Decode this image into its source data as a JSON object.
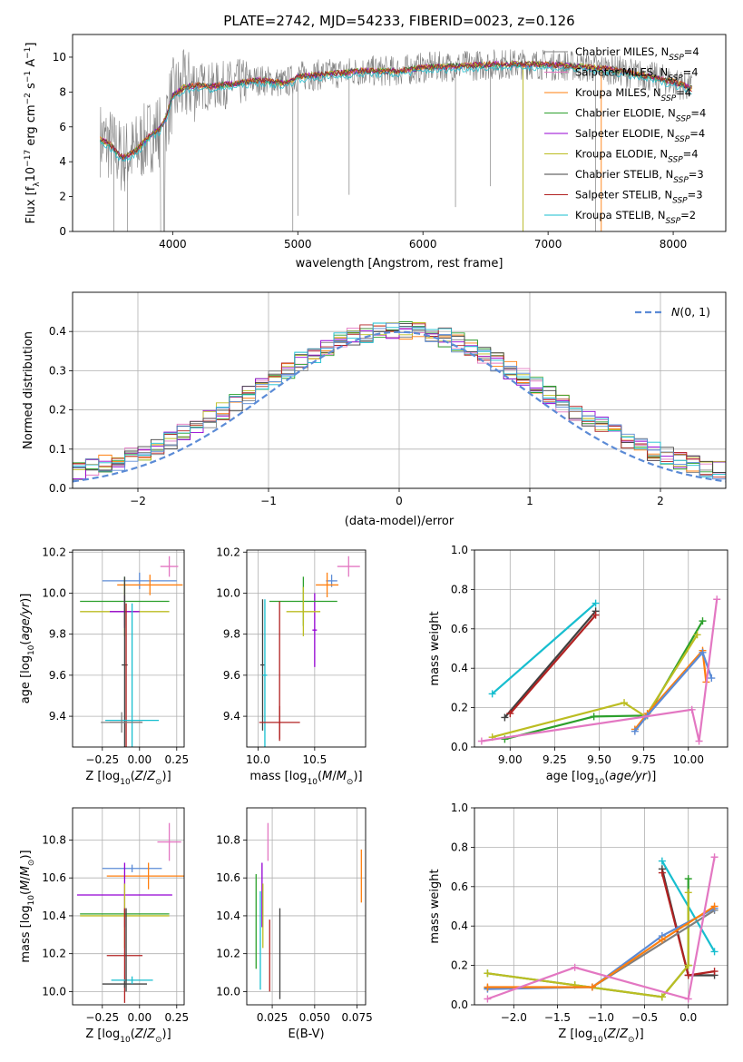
{
  "figure": {
    "title": "PLATE=2742, MJD=54233, FIBERID=0023, z=0.126"
  },
  "chart_data": [
    {
      "id": "spectrum",
      "type": "line",
      "xlabel": "wavelength [Angstrom, rest frame]",
      "ylabel": "Flux [f_λ 10^-17 erg cm^-2 s^-1 A^-1]",
      "xlim": [
        3200,
        8420
      ],
      "ylim": [
        0,
        11.3
      ],
      "xticks": [
        4000,
        5000,
        6000,
        7000,
        8000
      ],
      "yticks": [
        0,
        2,
        4,
        6,
        8,
        10
      ],
      "grid": false,
      "legend_position": "top-right",
      "series": [
        {
          "name": "Chabrier MILES, N_SSP=4",
          "color": "#808080"
        },
        {
          "name": "Salpeter MILES, N_SSP=4",
          "color": "#e377c2"
        },
        {
          "name": "Kroupa MILES, N_SSP=4",
          "color": "#ff7f0e"
        },
        {
          "name": "Chabrier ELODIE, N_SSP=4",
          "color": "#2ca02c"
        },
        {
          "name": "Salpeter ELODIE, N_SSP=4",
          "color": "#9400d3"
        },
        {
          "name": "Kroupa ELODIE, N_SSP=4",
          "color": "#bcbd22"
        },
        {
          "name": "Chabrier STELIB, N_SSP=3",
          "color": "#404040"
        },
        {
          "name": "Salpeter STELIB, N_SSP=3",
          "color": "#b22222"
        },
        {
          "name": "Kroupa STELIB, N_SSP=2",
          "color": "#17becf"
        }
      ],
      "continuum_points": [
        [
          3420,
          5.3
        ],
        [
          3500,
          5.0
        ],
        [
          3600,
          4.2
        ],
        [
          3700,
          4.6
        ],
        [
          3800,
          5.4
        ],
        [
          3900,
          5.9
        ],
        [
          3950,
          6.6
        ],
        [
          4000,
          7.8
        ],
        [
          4100,
          8.3
        ],
        [
          4200,
          8.4
        ],
        [
          4300,
          8.3
        ],
        [
          4500,
          8.5
        ],
        [
          4700,
          8.7
        ],
        [
          4900,
          8.5
        ],
        [
          5000,
          8.9
        ],
        [
          5200,
          9.0
        ],
        [
          5500,
          9.2
        ],
        [
          5800,
          9.2
        ],
        [
          6000,
          9.4
        ],
        [
          6300,
          9.5
        ],
        [
          6600,
          9.6
        ],
        [
          6900,
          9.6
        ],
        [
          7200,
          9.5
        ],
        [
          7500,
          9.3
        ],
        [
          7800,
          8.9
        ],
        [
          8000,
          8.6
        ],
        [
          8150,
          8.2
        ]
      ]
    },
    {
      "id": "residuals",
      "type": "histogram",
      "xlabel": "(data-model)/error",
      "ylabel": "Normed distribution",
      "xlim": [
        -2.5,
        2.5
      ],
      "ylim": [
        0,
        0.5
      ],
      "xticks": [
        -2,
        -1,
        0,
        1,
        2
      ],
      "yticks": [
        0.0,
        0.1,
        0.2,
        0.3,
        0.4
      ],
      "grid": true,
      "legend_position": "top-right",
      "reference_curve": {
        "name": "N(0,1)",
        "mean": 0,
        "std": 1,
        "color": "#5b8bd6"
      },
      "bin_width": 0.1
    },
    {
      "id": "age_vs_Z",
      "type": "errorbar",
      "xlabel": "Z [log10(Z/Z⊙)]",
      "ylabel": "age [log10(age/yr)]",
      "xlim": [
        -0.45,
        0.3
      ],
      "ylim": [
        9.25,
        10.21
      ],
      "xticks": [
        -0.25,
        0.0,
        0.25
      ],
      "yticks": [
        9.4,
        9.6,
        9.8,
        10.0,
        10.2
      ],
      "grid": true,
      "points": [
        {
          "color": "#e377c2",
          "x": 0.2,
          "xerr": 0.06,
          "y": 10.13,
          "yerr": 0.05
        },
        {
          "color": "#5b8bd6",
          "x": 0.0,
          "xerr": 0.25,
          "y": 10.06,
          "yerr": 0.04
        },
        {
          "color": "#ff7f0e",
          "x": 0.07,
          "xerr": 0.22,
          "y": 10.04,
          "yerr": 0.05
        },
        {
          "color": "#2ca02c",
          "x": -0.1,
          "xerr": 0.3,
          "y": 9.96,
          "yerr": 0.12
        },
        {
          "color": "#bcbd22",
          "x": -0.1,
          "xerr": 0.3,
          "y": 9.91,
          "yerr": 0.12
        },
        {
          "color": "#9400d3",
          "x": -0.1,
          "xerr": 0.1,
          "y": 9.91,
          "yerr": 0.08
        },
        {
          "color": "#404040",
          "x": -0.1,
          "xerr": 0.02,
          "y": 9.65,
          "yerr": 0.43
        },
        {
          "color": "#b22222",
          "x": -0.09,
          "xerr": 0.11,
          "y": 9.37,
          "yerr": 0.58
        },
        {
          "color": "#17becf",
          "x": -0.05,
          "xerr": 0.18,
          "y": 9.38,
          "yerr": 0.57
        },
        {
          "color": "#808080",
          "x": -0.12,
          "xerr": 0.14,
          "y": 9.37,
          "yerr": 0.05
        }
      ]
    },
    {
      "id": "age_vs_mass",
      "type": "errorbar",
      "xlabel": "mass [log10(M/M⊙)]",
      "ylabel": "",
      "xlim": [
        9.9,
        10.95
      ],
      "ylim": [
        9.25,
        10.21
      ],
      "xticks": [
        10.0,
        10.5
      ],
      "yticks": [
        9.4,
        9.6,
        9.8,
        10.0,
        10.2
      ],
      "grid": true,
      "points": [
        {
          "color": "#e377c2",
          "x": 10.8,
          "xerr": 0.1,
          "y": 10.13,
          "yerr": 0.05
        },
        {
          "color": "#5b8bd6",
          "x": 10.65,
          "xerr": 0.05,
          "y": 10.06,
          "yerr": 0.03
        },
        {
          "color": "#ff7f0e",
          "x": 10.61,
          "xerr": 0.1,
          "y": 10.04,
          "yerr": 0.06
        },
        {
          "color": "#9400d3",
          "x": 10.5,
          "xerr": 0.02,
          "y": 9.82,
          "yerr": 0.18
        },
        {
          "color": "#2ca02c",
          "x": 10.4,
          "xerr": 0.3,
          "y": 9.96,
          "yerr": 0.12
        },
        {
          "color": "#bcbd22",
          "x": 10.4,
          "xerr": 0.15,
          "y": 9.91,
          "yerr": 0.12
        },
        {
          "color": "#404040",
          "x": 10.04,
          "xerr": 0.02,
          "y": 9.65,
          "yerr": 0.32
        },
        {
          "color": "#17becf",
          "x": 10.06,
          "xerr": 0.02,
          "y": 9.6,
          "yerr": 0.37
        },
        {
          "color": "#b22222",
          "x": 10.19,
          "xerr": 0.18,
          "y": 9.37,
          "yerr": 0.08
        }
      ],
      "extra_vlines": [
        {
          "color": "#b22222",
          "x": 10.19,
          "y0": 9.28,
          "y1": 9.96
        }
      ]
    },
    {
      "id": "weight_vs_age",
      "type": "line",
      "xlabel": "age [log10(age/yr)]",
      "ylabel": "mass weight",
      "xlim": [
        8.8,
        10.22
      ],
      "ylim": [
        0,
        1.0
      ],
      "xticks": [
        9.0,
        9.25,
        9.5,
        9.75,
        10.0
      ],
      "yticks": [
        0.0,
        0.2,
        0.4,
        0.6,
        0.8,
        1.0
      ],
      "grid": true,
      "series": [
        {
          "color": "#17becf",
          "x": [
            8.9,
            9.48
          ],
          "y": [
            0.27,
            0.73
          ]
        },
        {
          "color": "#404040",
          "x": [
            8.97,
            9.48
          ],
          "y": [
            0.15,
            0.69
          ]
        },
        {
          "color": "#b22222",
          "x": [
            9.0,
            9.48
          ],
          "y": [
            0.17,
            0.67
          ]
        },
        {
          "color": "#2ca02c",
          "x": [
            8.97,
            9.47,
            9.77,
            10.08
          ],
          "y": [
            0.04,
            0.155,
            0.16,
            0.64
          ]
        },
        {
          "color": "#bcbd22",
          "x": [
            8.9,
            9.64,
            9.76,
            10.05
          ],
          "y": [
            0.05,
            0.225,
            0.155,
            0.57
          ]
        },
        {
          "color": "#ff7f0e",
          "x": [
            9.7,
            9.77,
            10.08,
            10.1
          ],
          "y": [
            0.09,
            0.17,
            0.49,
            0.33
          ]
        },
        {
          "color": "#5b8bd6",
          "x": [
            9.7,
            9.77,
            10.08,
            10.13
          ],
          "y": [
            0.08,
            0.16,
            0.48,
            0.35
          ]
        },
        {
          "color": "#e377c2",
          "x": [
            8.84,
            10.02,
            10.06,
            10.16
          ],
          "y": [
            0.03,
            0.19,
            0.03,
            0.75
          ]
        }
      ]
    },
    {
      "id": "mass_vs_Z",
      "type": "errorbar",
      "xlabel": "Z [log10(Z/Z⊙)]",
      "ylabel": "mass [log10(M/M⊙)]",
      "xlim": [
        -0.45,
        0.3
      ],
      "ylim": [
        9.93,
        10.97
      ],
      "xticks": [
        -0.25,
        0.0,
        0.25
      ],
      "yticks": [
        10.0,
        10.2,
        10.4,
        10.6,
        10.8
      ],
      "grid": true,
      "points": [
        {
          "color": "#e377c2",
          "x": 0.2,
          "xerr": 0.08,
          "y": 10.79,
          "yerr": 0.1
        },
        {
          "color": "#5b8bd6",
          "x": -0.05,
          "xerr": 0.2,
          "y": 10.65,
          "yerr": 0.02
        },
        {
          "color": "#ff7f0e",
          "x": 0.06,
          "xerr": 0.28,
          "y": 10.61,
          "yerr": 0.07
        },
        {
          "color": "#9400d3",
          "x": -0.1,
          "xerr": 0.32,
          "y": 10.51,
          "yerr": 0.17
        },
        {
          "color": "#2ca02c",
          "x": -0.1,
          "xerr": 0.3,
          "y": 10.41,
          "yerr": 0.02
        },
        {
          "color": "#bcbd22",
          "x": -0.1,
          "xerr": 0.3,
          "y": 10.4,
          "yerr": 0.17
        },
        {
          "color": "#b22222",
          "x": -0.1,
          "xerr": 0.12,
          "y": 10.19,
          "yerr": 0.25
        },
        {
          "color": "#404040",
          "x": -0.1,
          "xerr": 0.15,
          "y": 10.04,
          "yerr": 0.02
        },
        {
          "color": "#17becf",
          "x": -0.05,
          "xerr": 0.14,
          "y": 10.06,
          "yerr": 0.02
        }
      ],
      "extra_vlines": [
        {
          "color": "#404040",
          "x": -0.09,
          "y0": 10.0,
          "y1": 10.44
        }
      ]
    },
    {
      "id": "mass_vs_ebv",
      "type": "errorbar",
      "xlabel": "E(B-V)",
      "ylabel": "",
      "xlim": [
        0.01,
        0.08
      ],
      "ylim": [
        9.93,
        10.97
      ],
      "xticks": [
        0.025,
        0.05,
        0.075
      ],
      "yticks": [
        10.0,
        10.2,
        10.4,
        10.6,
        10.8
      ],
      "grid": true,
      "points": [
        {
          "color": "#e377c2",
          "x": 0.0225,
          "xerr": 0,
          "y": 10.79,
          "yerr": 0.1
        },
        {
          "color": "#9400d3",
          "x": 0.019,
          "xerr": 0,
          "y": 10.51,
          "yerr": 0.17
        },
        {
          "color": "#ff7f0e",
          "x": 0.0775,
          "xerr": 0,
          "y": 10.61,
          "yerr": 0.14
        },
        {
          "color": "#bcbd22",
          "x": 0.0195,
          "xerr": 0,
          "y": 10.4,
          "yerr": 0.17
        },
        {
          "color": "#2ca02c",
          "x": 0.0155,
          "xerr": 0,
          "y": 10.37,
          "yerr": 0.25
        },
        {
          "color": "#17becf",
          "x": 0.018,
          "xerr": 0,
          "y": 10.27,
          "yerr": 0.26
        },
        {
          "color": "#b22222",
          "x": 0.0235,
          "xerr": 0,
          "y": 10.19,
          "yerr": 0.19
        },
        {
          "color": "#404040",
          "x": 0.0295,
          "xerr": 0,
          "y": 10.2,
          "yerr": 0.24
        }
      ]
    },
    {
      "id": "weight_vs_Z",
      "type": "line",
      "xlabel": "Z [log10(Z/Z⊙)]",
      "ylabel": "mass weight",
      "xlim": [
        -2.45,
        0.45
      ],
      "ylim": [
        0,
        1.0
      ],
      "xticks": [
        -2.0,
        -1.5,
        -1.0,
        -0.5,
        0.0
      ],
      "yticks": [
        0.0,
        0.2,
        0.4,
        0.6,
        0.8,
        1.0
      ],
      "grid": true,
      "series": [
        {
          "color": "#17becf",
          "x": [
            -0.3,
            0.3
          ],
          "y": [
            0.73,
            0.27
          ]
        },
        {
          "color": "#404040",
          "x": [
            -0.3,
            0.0,
            0.3
          ],
          "y": [
            0.69,
            0.15,
            0.15
          ]
        },
        {
          "color": "#b22222",
          "x": [
            -0.3,
            0.0,
            0.3
          ],
          "y": [
            0.67,
            0.15,
            0.17
          ]
        },
        {
          "color": "#2ca02c",
          "x": [
            -2.3,
            -1.3,
            -0.3,
            0.0,
            0.0
          ],
          "y": [
            0.16,
            0.1,
            0.04,
            0.2,
            0.64
          ]
        },
        {
          "color": "#bcbd22",
          "x": [
            -2.3,
            -1.3,
            -0.3,
            0.0,
            0.0
          ],
          "y": [
            0.16,
            0.1,
            0.04,
            0.2,
            0.57
          ]
        },
        {
          "color": "#808080",
          "x": [
            -2.3,
            -1.1,
            0.3
          ],
          "y": [
            0.085,
            0.09,
            0.48
          ]
        },
        {
          "color": "#5b8bd6",
          "x": [
            -2.3,
            -1.1,
            -0.3,
            0.3
          ],
          "y": [
            0.08,
            0.09,
            0.35,
            0.49
          ]
        },
        {
          "color": "#ff7f0e",
          "x": [
            -2.3,
            -1.1,
            -0.3,
            0.3
          ],
          "y": [
            0.09,
            0.09,
            0.33,
            0.5
          ]
        },
        {
          "color": "#e377c2",
          "x": [
            -2.3,
            -1.3,
            0.0,
            0.3
          ],
          "y": [
            0.03,
            0.19,
            0.03,
            0.75
          ]
        }
      ]
    }
  ]
}
